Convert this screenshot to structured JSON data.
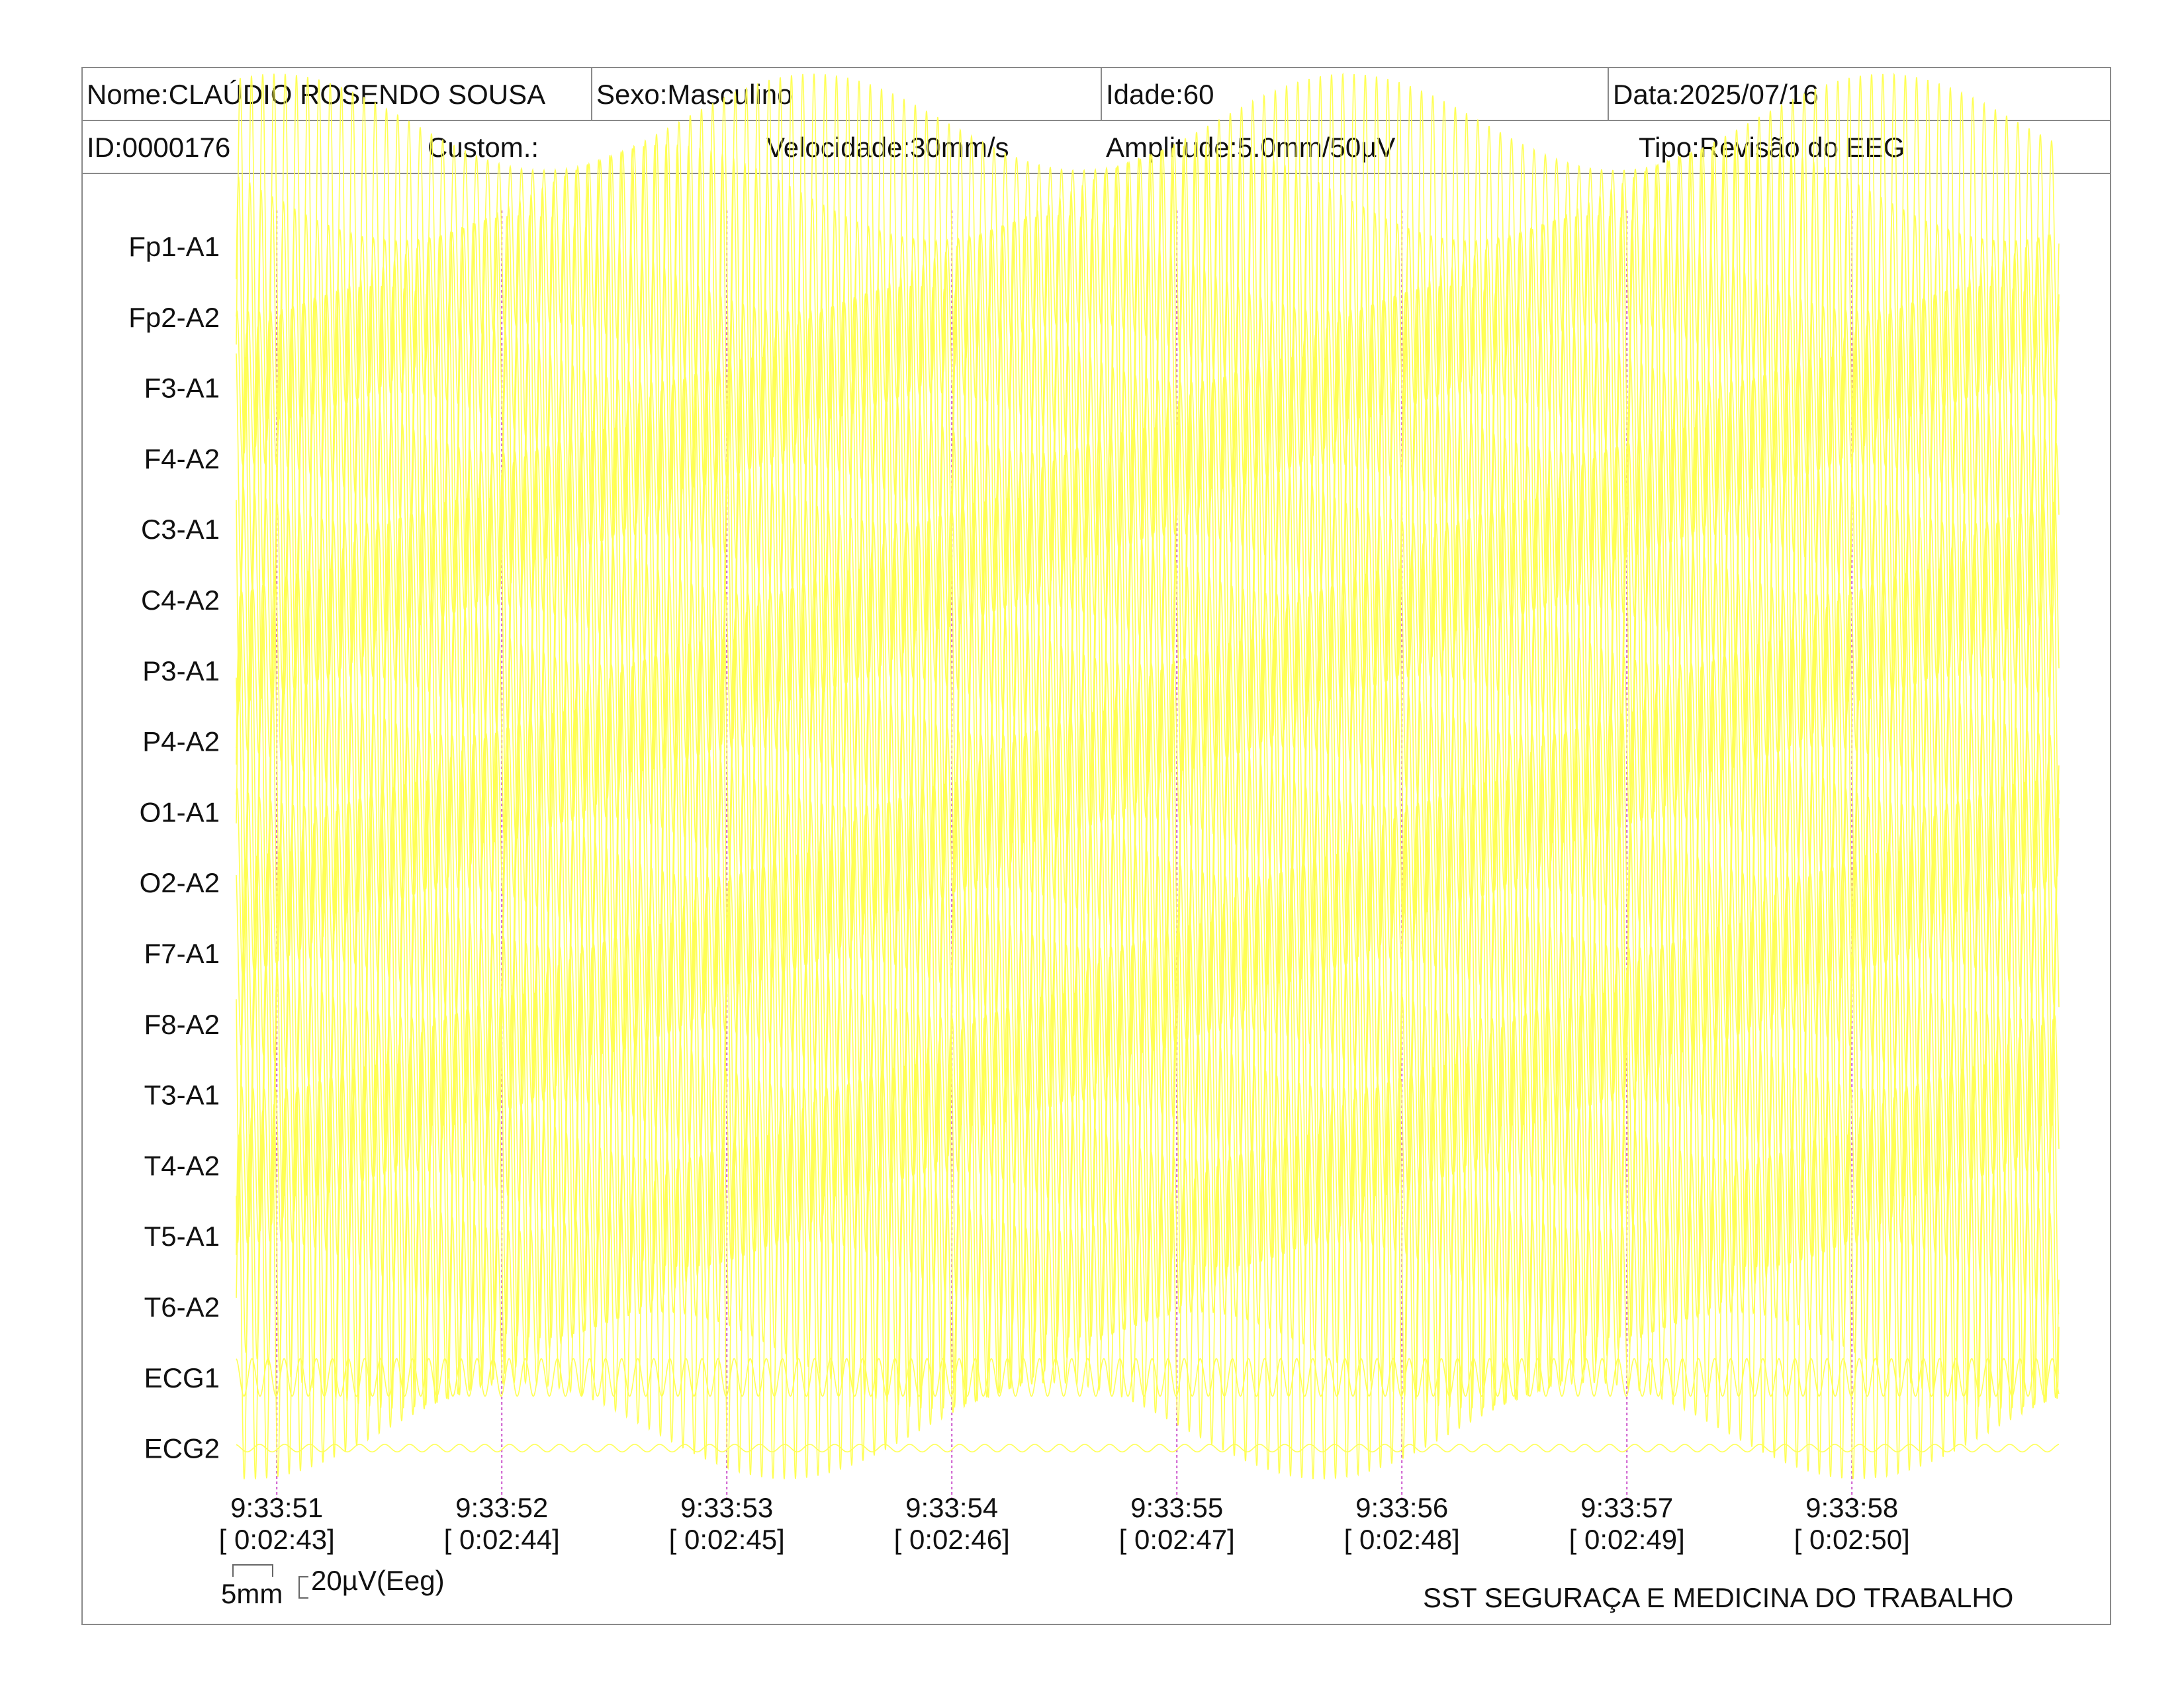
{
  "header": {
    "name": "Nome:CLAÚDIO ROSENDO SOUSA",
    "sex": "Sexo:Masculino",
    "age": "Idade:60",
    "date": "Data:2025/07/16",
    "id": "ID:0000176",
    "custom": "Custom.:",
    "speed": "Velocidade:30mm/s",
    "amplitude": "Amplitude:5.0mm/50µV",
    "type": "Tipo:Revisão do EEG"
  },
  "scale": {
    "time_label": "5mm",
    "amp_label": "20µV(Eeg)"
  },
  "footer": {
    "company": "SST SEGURAÇA E MEDICINA DO TRABALHO"
  },
  "colors": {
    "trace": "#ffff55",
    "marker": "#cc55cc",
    "border": "#8a8a8a"
  },
  "chart_data": {
    "type": "line",
    "channels": [
      "Fp1-A1",
      "Fp2-A2",
      "F3-A1",
      "F4-A2",
      "C3-A1",
      "C4-A2",
      "P3-A1",
      "P4-A2",
      "O1-A1",
      "O2-A2",
      "F7-A1",
      "F8-A2",
      "T3-A1",
      "T4-A2",
      "T5-A1",
      "T6-A2",
      "ECG1",
      "ECG2"
    ],
    "time_markers": [
      {
        "clock": "9:33:51",
        "elapsed": "[ 0:02:43]"
      },
      {
        "clock": "9:33:52",
        "elapsed": "[ 0:02:44]"
      },
      {
        "clock": "9:33:53",
        "elapsed": "[ 0:02:45]"
      },
      {
        "clock": "9:33:54",
        "elapsed": "[ 0:02:46]"
      },
      {
        "clock": "9:33:55",
        "elapsed": "[ 0:02:47]"
      },
      {
        "clock": "9:33:56",
        "elapsed": "[ 0:02:48]"
      },
      {
        "clock": "9:33:57",
        "elapsed": "[ 0:02:49]"
      },
      {
        "clock": "9:33:58",
        "elapsed": "[ 0:02:50]"
      }
    ],
    "x_start_s": -0.18,
    "x_end_s": 7.92,
    "speed_mm_per_s": 30,
    "amplitude_mm_per_50uV": 5.0,
    "eeg_channel_amplitude_uV": [
      230,
      230,
      230,
      230,
      230,
      230,
      230,
      230,
      230,
      230,
      230,
      230,
      230,
      230,
      230,
      230
    ],
    "eeg_frequency_hz": 20,
    "ecg1_amplitude_uV": 25,
    "ecg2_amplitude_uV": 5
  }
}
